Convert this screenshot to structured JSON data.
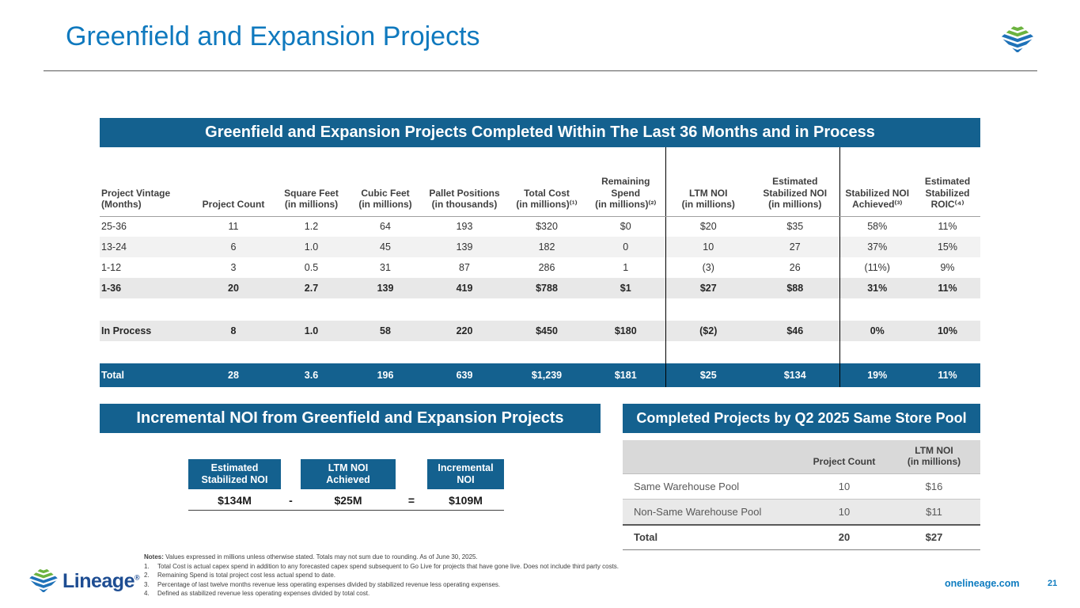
{
  "page": {
    "title": "Greenfield and Expansion Projects",
    "site": "onelineage.com",
    "page_number": "21",
    "brand": "Lineage",
    "registered_mark": "®"
  },
  "colors": {
    "banner_blue": "#14618F",
    "title_blue": "#0F79BE",
    "brand_green": "#6CB33F",
    "brand_blue": "#1F72B8",
    "wordmark_blue": "#1E4D92",
    "stripe_gray": "#F2F2F2",
    "strong_gray": "#E8E8E8"
  },
  "main_table": {
    "title": "Greenfield and Expansion Projects Completed Within The Last 36 Months and in Process",
    "headers": [
      "Project Vintage\n(Months)",
      "Project Count",
      "Square Feet\n(in millions)",
      "Cubic Feet\n(in millions)",
      "Pallet Positions\n(in thousands)",
      "Total Cost\n(in millions)⁽¹⁾",
      "Remaining\nSpend\n(in millions)⁽²⁾",
      "LTM NOI\n(in millions)",
      "Estimated\nStabilized NOI\n(in millions)",
      "Stabilized NOI\nAchieved⁽³⁾",
      "Estimated\nStabilized\nROIC⁽⁴⁾"
    ],
    "rows": [
      {
        "style": "plain",
        "cells": [
          "25-36",
          "11",
          "1.2",
          "64",
          "193",
          "$320",
          "$0",
          "$20",
          "$35",
          "58%",
          "11%"
        ]
      },
      {
        "style": "stripe",
        "cells": [
          "13-24",
          "6",
          "1.0",
          "45",
          "139",
          "182",
          "0",
          "10",
          "27",
          "37%",
          "15%"
        ]
      },
      {
        "style": "plain",
        "cells": [
          "1-12",
          "3",
          "0.5",
          "31",
          "87",
          "286",
          "1",
          "(3)",
          "26",
          "(11%)",
          "9%"
        ]
      },
      {
        "style": "strong",
        "cells": [
          "1-36",
          "20",
          "2.7",
          "139",
          "419",
          "$788",
          "$1",
          "$27",
          "$88",
          "31%",
          "11%"
        ]
      },
      {
        "style": "spacer",
        "cells": []
      },
      {
        "style": "strong",
        "cells": [
          "In Process",
          "8",
          "1.0",
          "58",
          "220",
          "$450",
          "$180",
          "($2)",
          "$46",
          "0%",
          "10%"
        ]
      },
      {
        "style": "spacer",
        "cells": []
      }
    ],
    "total": {
      "cells": [
        "Total",
        "28",
        "3.6",
        "196",
        "639",
        "$1,239",
        "$181",
        "$25",
        "$134",
        "19%",
        "11%"
      ]
    }
  },
  "incremental": {
    "title": "Incremental NOI from Greenfield and Expansion Projects",
    "col1_header": "Estimated\nStabilized NOI",
    "col2_header": "LTM NOI\nAchieved",
    "col3_header": "Incremental\nNOI",
    "value1": "$134M",
    "operator1": "-",
    "value2": "$25M",
    "operator2": "=",
    "value3": "$109M"
  },
  "pool_table": {
    "title": "Completed Projects by Q2 2025 Same Store Pool",
    "headers": [
      "",
      "Project Count",
      "LTM NOI\n(in millions)"
    ],
    "rows": [
      {
        "style": "plain",
        "cells": [
          "Same Warehouse Pool",
          "10",
          "$16"
        ]
      },
      {
        "style": "stripe",
        "cells": [
          "Non-Same Warehouse Pool",
          "10",
          "$11"
        ]
      }
    ],
    "total": {
      "cells": [
        "Total",
        "20",
        "$27"
      ]
    }
  },
  "notes": {
    "label": "Notes:",
    "intro": "Values expressed in millions unless otherwise stated. Totals may not sum due to rounding. As of June 30, 2025.",
    "items": [
      {
        "num": "1.",
        "text": "Total Cost is actual capex spend in addition to any forecasted capex spend subsequent to Go Live for projects that have gone live. Does not include third party costs."
      },
      {
        "num": "2.",
        "text": "Remaining Spend is total project cost less actual spend to date."
      },
      {
        "num": "3.",
        "text": "Percentage of last twelve months revenue less operating expenses divided by stabilized revenue less operating expenses."
      },
      {
        "num": "4.",
        "text": "Defined as stabilized revenue less operating expenses divided by total cost."
      }
    ]
  }
}
